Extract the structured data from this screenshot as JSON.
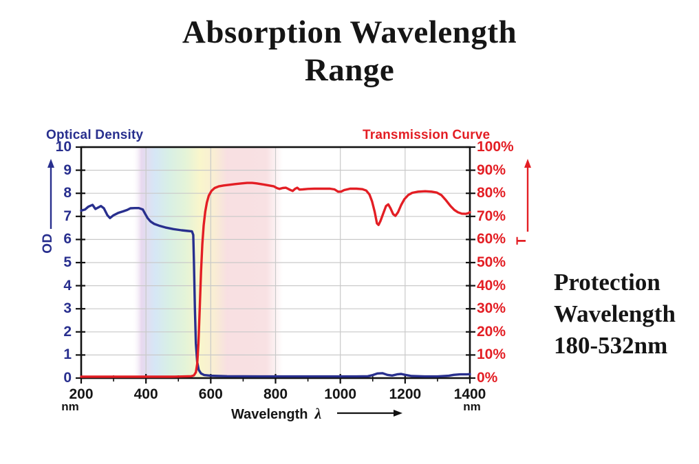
{
  "title": {
    "line1": "Absorption Wavelength",
    "line2": "Range"
  },
  "side_note": {
    "line1": "Protection",
    "line2": "Wavelength",
    "line3": "180-532nm"
  },
  "colors": {
    "od_blue": "#282f8e",
    "transmission_red": "#e31e24",
    "grid": "#c9c9c9",
    "axis": "#111111",
    "text": "#151515"
  },
  "chart_data": {
    "type": "line",
    "title": "Absorption Wavelength Range",
    "grid": {
      "horizontal_at_od": [
        1,
        2,
        3,
        4,
        5,
        6,
        7,
        8,
        9
      ],
      "vertical_at_nm": [
        400,
        600,
        800,
        1000,
        1200
      ]
    },
    "x_axis": {
      "label": "Wavelength",
      "lambda_symbol": "λ",
      "unit": "nm",
      "min": 200,
      "max": 1400,
      "major_ticks": [
        200,
        400,
        600,
        800,
        1000,
        1200,
        1400
      ],
      "minor_ticks": [
        300,
        500,
        700,
        900,
        1100,
        1300
      ]
    },
    "y_left": {
      "title": "Optical Density",
      "axis_label": "OD",
      "min": 0,
      "max": 10,
      "ticks": [
        0,
        1,
        2,
        3,
        4,
        5,
        6,
        7,
        8,
        9,
        10
      ],
      "color": "#282f8e"
    },
    "y_right": {
      "title": "Transmission Curve",
      "axis_label": "T",
      "min": 0,
      "max": 100,
      "ticks": [
        0,
        10,
        20,
        30,
        40,
        50,
        60,
        70,
        80,
        90,
        100
      ],
      "tick_suffix": "%",
      "color": "#e31e24"
    },
    "visible_spectrum_band": {
      "start_nm": 358,
      "end_nm": 822,
      "opacity": 0.8,
      "stops": [
        {
          "offset": 0.0,
          "color": "#ffffff",
          "opacity": 0
        },
        {
          "offset": 0.06,
          "color": "#dfc9e8",
          "opacity": 0.9
        },
        {
          "offset": 0.15,
          "color": "#c6ddf2",
          "opacity": 0.9
        },
        {
          "offset": 0.24,
          "color": "#c9e9dc",
          "opacity": 0.9
        },
        {
          "offset": 0.35,
          "color": "#d9efca",
          "opacity": 0.9
        },
        {
          "offset": 0.45,
          "color": "#f7f2b8",
          "opacity": 0.9
        },
        {
          "offset": 0.55,
          "color": "#f7e6c4",
          "opacity": 0.9
        },
        {
          "offset": 0.63,
          "color": "#f5d3d6",
          "opacity": 0.9
        },
        {
          "offset": 0.89,
          "color": "#f5d3d6",
          "opacity": 0.85
        },
        {
          "offset": 1.0,
          "color": "#f5d3d6",
          "opacity": 0
        }
      ]
    },
    "series": [
      {
        "name": "Optical Density",
        "axis": "left",
        "color": "#282f8e",
        "points": [
          [
            200,
            7.25
          ],
          [
            212,
            7.3
          ],
          [
            222,
            7.42
          ],
          [
            235,
            7.5
          ],
          [
            244,
            7.32
          ],
          [
            252,
            7.38
          ],
          [
            261,
            7.45
          ],
          [
            270,
            7.35
          ],
          [
            281,
            7.05
          ],
          [
            289,
            6.93
          ],
          [
            300,
            7.05
          ],
          [
            314,
            7.15
          ],
          [
            330,
            7.22
          ],
          [
            342,
            7.28
          ],
          [
            352,
            7.35
          ],
          [
            365,
            7.36
          ],
          [
            378,
            7.36
          ],
          [
            390,
            7.3
          ],
          [
            398,
            7.1
          ],
          [
            405,
            6.93
          ],
          [
            414,
            6.78
          ],
          [
            425,
            6.68
          ],
          [
            440,
            6.6
          ],
          [
            460,
            6.52
          ],
          [
            485,
            6.45
          ],
          [
            510,
            6.4
          ],
          [
            530,
            6.37
          ],
          [
            542,
            6.35
          ],
          [
            546,
            6.2
          ],
          [
            548,
            5.0
          ],
          [
            551,
            3.0
          ],
          [
            554,
            1.5
          ],
          [
            558,
            0.7
          ],
          [
            563,
            0.35
          ],
          [
            570,
            0.2
          ],
          [
            580,
            0.13
          ],
          [
            600,
            0.1
          ],
          [
            650,
            0.08
          ],
          [
            750,
            0.07
          ],
          [
            850,
            0.07
          ],
          [
            950,
            0.07
          ],
          [
            1050,
            0.07
          ],
          [
            1085,
            0.08
          ],
          [
            1100,
            0.13
          ],
          [
            1115,
            0.2
          ],
          [
            1130,
            0.21
          ],
          [
            1145,
            0.14
          ],
          [
            1160,
            0.11
          ],
          [
            1175,
            0.16
          ],
          [
            1188,
            0.18
          ],
          [
            1200,
            0.14
          ],
          [
            1220,
            0.09
          ],
          [
            1260,
            0.07
          ],
          [
            1300,
            0.07
          ],
          [
            1335,
            0.1
          ],
          [
            1350,
            0.14
          ],
          [
            1370,
            0.16
          ],
          [
            1390,
            0.16
          ],
          [
            1400,
            0.17
          ]
        ]
      },
      {
        "name": "Transmission",
        "axis": "right",
        "color": "#e31e24",
        "points": [
          [
            200,
            0.6
          ],
          [
            300,
            0.6
          ],
          [
            400,
            0.6
          ],
          [
            480,
            0.6
          ],
          [
            520,
            0.7
          ],
          [
            540,
            0.8
          ],
          [
            548,
            1.2
          ],
          [
            554,
            2.5
          ],
          [
            558,
            6
          ],
          [
            562,
            15
          ],
          [
            566,
            30
          ],
          [
            570,
            46
          ],
          [
            574,
            58
          ],
          [
            578,
            66
          ],
          [
            583,
            72
          ],
          [
            588,
            76
          ],
          [
            594,
            79
          ],
          [
            602,
            81
          ],
          [
            612,
            82.3
          ],
          [
            625,
            83
          ],
          [
            640,
            83.4
          ],
          [
            658,
            83.7
          ],
          [
            675,
            84
          ],
          [
            695,
            84.3
          ],
          [
            712,
            84.5
          ],
          [
            728,
            84.5
          ],
          [
            742,
            84.3
          ],
          [
            755,
            84
          ],
          [
            768,
            83.7
          ],
          [
            780,
            83.4
          ],
          [
            795,
            83
          ],
          [
            805,
            82.2
          ],
          [
            812,
            81.9
          ],
          [
            822,
            82.3
          ],
          [
            832,
            82.4
          ],
          [
            845,
            81.5
          ],
          [
            853,
            81
          ],
          [
            860,
            81.9
          ],
          [
            867,
            82.4
          ],
          [
            874,
            81.6
          ],
          [
            884,
            81.7
          ],
          [
            900,
            81.9
          ],
          [
            920,
            82
          ],
          [
            945,
            82
          ],
          [
            968,
            82
          ],
          [
            982,
            81.7
          ],
          [
            993,
            80.7
          ],
          [
            1002,
            80.7
          ],
          [
            1012,
            81.4
          ],
          [
            1030,
            82
          ],
          [
            1050,
            82
          ],
          [
            1068,
            81.8
          ],
          [
            1080,
            81.2
          ],
          [
            1090,
            79.5
          ],
          [
            1098,
            76.5
          ],
          [
            1106,
            72
          ],
          [
            1113,
            67
          ],
          [
            1118,
            66.3
          ],
          [
            1124,
            68
          ],
          [
            1133,
            71.5
          ],
          [
            1141,
            74.5
          ],
          [
            1148,
            75.2
          ],
          [
            1155,
            73.5
          ],
          [
            1163,
            71
          ],
          [
            1170,
            70.2
          ],
          [
            1178,
            71.8
          ],
          [
            1188,
            75
          ],
          [
            1198,
            77.5
          ],
          [
            1210,
            79.3
          ],
          [
            1222,
            80.2
          ],
          [
            1240,
            80.7
          ],
          [
            1262,
            80.9
          ],
          [
            1282,
            80.7
          ],
          [
            1298,
            80.3
          ],
          [
            1312,
            79.2
          ],
          [
            1326,
            77
          ],
          [
            1340,
            74.5
          ],
          [
            1352,
            72.8
          ],
          [
            1363,
            71.8
          ],
          [
            1375,
            71.2
          ],
          [
            1387,
            71.1
          ],
          [
            1395,
            71.4
          ],
          [
            1400,
            71.8
          ]
        ]
      }
    ]
  }
}
